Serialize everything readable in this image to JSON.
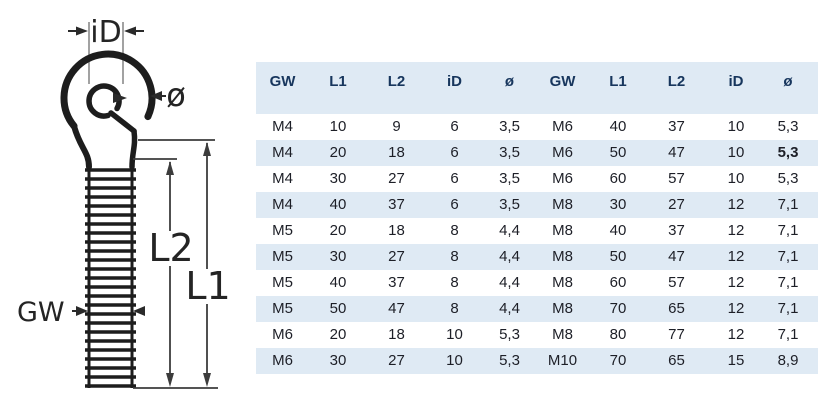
{
  "diagram": {
    "labels": {
      "inner_diameter": "iD",
      "wire_diameter": "ø",
      "length_l2": "L2",
      "length_l1": "L1",
      "thread": "GW"
    }
  },
  "table": {
    "headers": [
      "GW",
      "L1",
      "L2",
      "iD",
      "ø",
      "GW",
      "L1",
      "L2",
      "iD",
      "ø"
    ],
    "rows": [
      [
        "M4",
        "10",
        "9",
        "6",
        "3,5",
        "M6",
        "40",
        "37",
        "10",
        "5,3"
      ],
      [
        "M4",
        "20",
        "18",
        "6",
        "3,5",
        "M6",
        "50",
        "47",
        "10",
        "5,3"
      ],
      [
        "M4",
        "30",
        "27",
        "6",
        "3,5",
        "M6",
        "60",
        "57",
        "10",
        "5,3"
      ],
      [
        "M4",
        "40",
        "37",
        "6",
        "3,5",
        "M8",
        "30",
        "27",
        "12",
        "7,1"
      ],
      [
        "M5",
        "20",
        "18",
        "8",
        "4,4",
        "M8",
        "40",
        "37",
        "12",
        "7,1"
      ],
      [
        "M5",
        "30",
        "27",
        "8",
        "4,4",
        "M8",
        "50",
        "47",
        "12",
        "7,1"
      ],
      [
        "M5",
        "40",
        "37",
        "8",
        "4,4",
        "M8",
        "60",
        "57",
        "12",
        "7,1"
      ],
      [
        "M5",
        "50",
        "47",
        "8",
        "4,4",
        "M8",
        "70",
        "65",
        "12",
        "7,1"
      ],
      [
        "M6",
        "20",
        "18",
        "10",
        "5,3",
        "M8",
        "80",
        "77",
        "12",
        "7,1"
      ],
      [
        "M6",
        "30",
        "27",
        "10",
        "5,3",
        "M10",
        "70",
        "65",
        "15",
        "8,9"
      ]
    ],
    "bold_cell": {
      "row_index": 1,
      "col_index": 9
    },
    "colors": {
      "header_bg": "#dfeaf4",
      "header_text": "#17365d",
      "row_alt_bg": "#dfeaf4",
      "cell_text": "#1d1f27"
    }
  }
}
